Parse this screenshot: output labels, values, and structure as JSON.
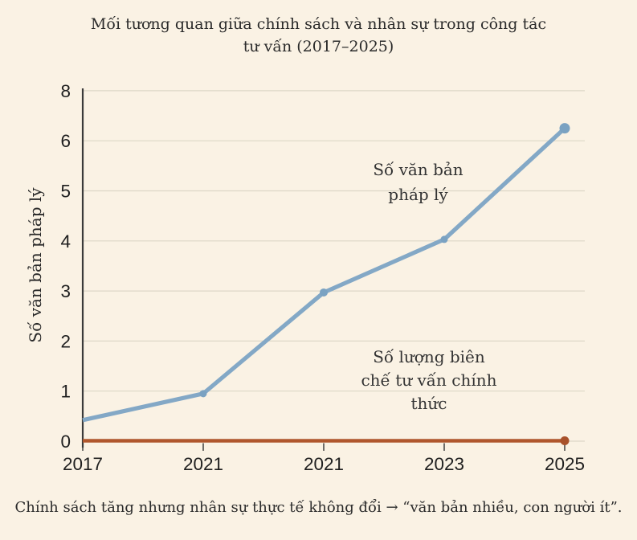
{
  "title": "Mối tương quan giữa chính sách và nhân sự trong công tác tư vấn (2017–2025)",
  "caption": "Chính sách tăng nhưng nhân sự thực tế không đổi → “văn bản nhiều, con người ít”.",
  "chart_data": {
    "type": "line",
    "title": "Mối tương quan giữa chính sách và nhân sự trong công tác tư vấn (2017–2025)",
    "xlabel": "",
    "ylabel": "Số văn bản pháp lý",
    "x_tick_labels": [
      "2017",
      "2021",
      "2021",
      "2023",
      "2025"
    ],
    "y_tick_labels": [
      "0",
      "1",
      "2",
      "3",
      "4",
      "5",
      "6",
      "8"
    ],
    "grid": "horizontal",
    "legend_position": "none (inline text annotations)",
    "series": [
      {
        "name": "Số văn bản pháp lý",
        "color": "#83a8c6",
        "values": [
          0.42,
          0.95,
          2.97,
          4.03,
          6.25
        ]
      },
      {
        "name": "Số lượng biên chế tư vấn chính thức",
        "color": "#b0572d",
        "values": [
          0,
          0,
          0,
          0,
          0
        ]
      }
    ],
    "annotations": [
      {
        "text": "Số văn bản pháp lý",
        "anchor": "above blue line, plot center-right"
      },
      {
        "text": "Số lượng biên chế tư vấn chính thức",
        "anchor": "above flat orange line, lower right"
      }
    ],
    "colors": {
      "background": "#faf2e4",
      "axis": "#3a3a3a",
      "gridline": "#ddd7c7",
      "blue_series": "#83a8c6",
      "orange_series": "#b0572d",
      "text": "#2a2a2a"
    }
  }
}
